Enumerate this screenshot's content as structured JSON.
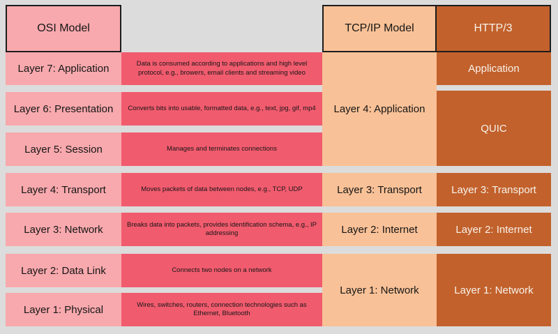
{
  "colors": {
    "background": "#dcdcdc",
    "osi_light": "#f8a9ad",
    "osi_dark": "#f15b6e",
    "tcpip_fill": "#f9c197",
    "http3_fill": "#c2612c",
    "border_dark": "#1c1c1c",
    "text_dark": "#161616",
    "text_light": "#f7f2ea"
  },
  "columns": {
    "osi": {
      "header": "OSI Model",
      "layers": [
        {
          "label": "Layer 7: Application",
          "description": "Data is consumed according to applications and high level protocol, e.g., browers, email clients and streaming video"
        },
        {
          "label": "Layer 6: Presentation",
          "description": "Converts bits into usable, formatted data, e.g., text, jpg, gif, mp4"
        },
        {
          "label": "Layer 5: Session",
          "description": "Manages and terminates connections"
        },
        {
          "label": "Layer 4: Transport",
          "description": "Moves packets of data between nodes, e.g., TCP, UDP"
        },
        {
          "label": "Layer 3: Network",
          "description": "Breaks data into packets, provides identification schema, e.g., IP addressing"
        },
        {
          "label": "Layer 2: Data Link",
          "description": "Connects two nodes on a network"
        },
        {
          "label": "Layer 1: Physical",
          "description": "Wires, switches, routers, connection technologies such as Ethernet, Bluetooth"
        }
      ]
    },
    "tcpip": {
      "header": "TCP/IP Model",
      "layers": [
        {
          "label": "Layer 4: Application"
        },
        {
          "label": "Layer 3: Transport"
        },
        {
          "label": "Layer 2: Internet"
        },
        {
          "label": "Layer 1: Network"
        }
      ]
    },
    "http3": {
      "header": "HTTP/3",
      "layers": [
        {
          "label": "Application"
        },
        {
          "label": "QUIC"
        },
        {
          "label": "Layer 3: Transport"
        },
        {
          "label": "Layer 2: Internet"
        },
        {
          "label": "Layer 1: Network"
        }
      ]
    }
  }
}
